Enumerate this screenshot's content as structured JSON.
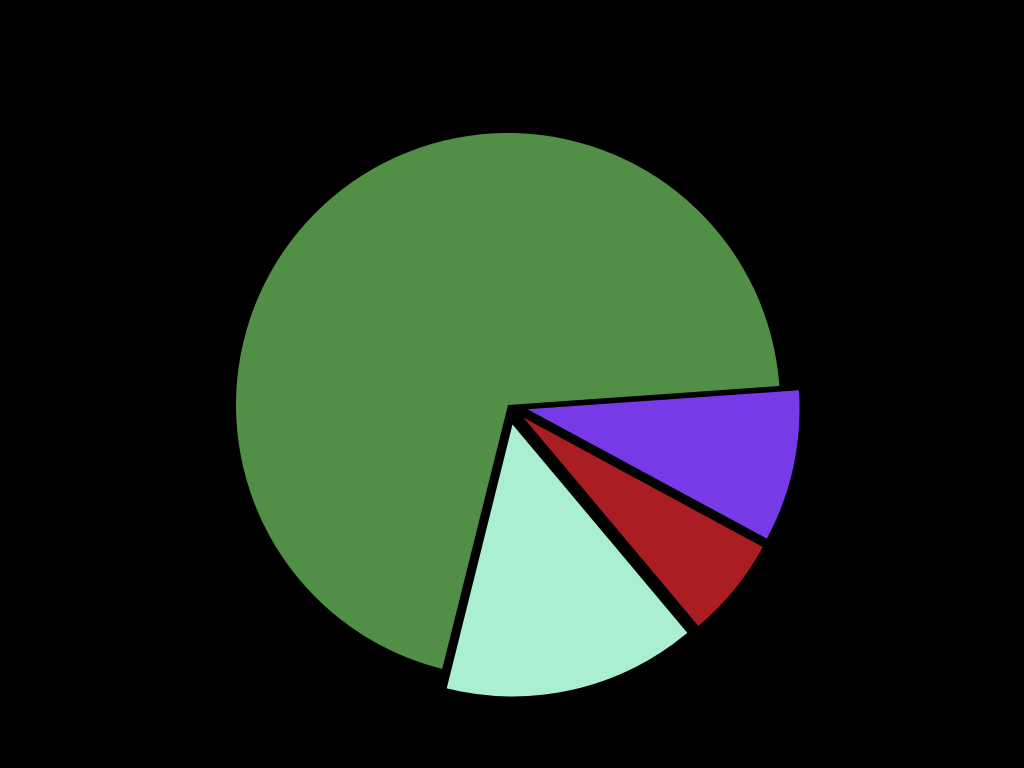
{
  "chart_data": {
    "type": "pie",
    "title": "",
    "legend": "none",
    "background": "#000000",
    "start_angle_deg": 4.0,
    "direction": "counterclockwise",
    "slices": [
      {
        "value": 70.0,
        "color": "#528f46",
        "exploded": false
      },
      {
        "value": 15.0,
        "color": "#a9efd0",
        "exploded": true
      },
      {
        "value": 6.0,
        "color": "#aa1d22",
        "exploded": true
      },
      {
        "value": 9.0,
        "color": "#7839e6",
        "exploded": true
      }
    ]
  }
}
